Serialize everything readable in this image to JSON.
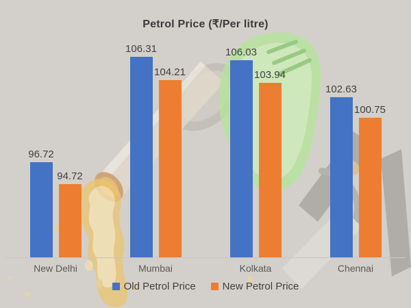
{
  "chart_data": {
    "type": "bar",
    "title": "Petrol Price (₹/Per litre)",
    "categories": [
      "New Delhi",
      "Mumbai",
      "Kolkata",
      "Chennai"
    ],
    "series": [
      {
        "name": "Old Petrol Price",
        "color": "#4472C4",
        "values": [
          96.72,
          106.31,
          106.03,
          102.63
        ]
      },
      {
        "name": "New Petrol Price",
        "color": "#ED7D31",
        "values": [
          94.72,
          104.21,
          103.94,
          100.75
        ]
      }
    ],
    "xlabel": "",
    "ylabel": "",
    "ylim": [
      88,
      108.4
    ],
    "grid": false,
    "legend_position": "bottom",
    "data_labels": true,
    "value_decimals": 2
  },
  "colors": {
    "background": "#d3d0cb",
    "title_text": "#3b3b3b",
    "data_label_text": "#3f3f3f",
    "category_text": "#595959",
    "axis_line": "#c9c6c1"
  }
}
